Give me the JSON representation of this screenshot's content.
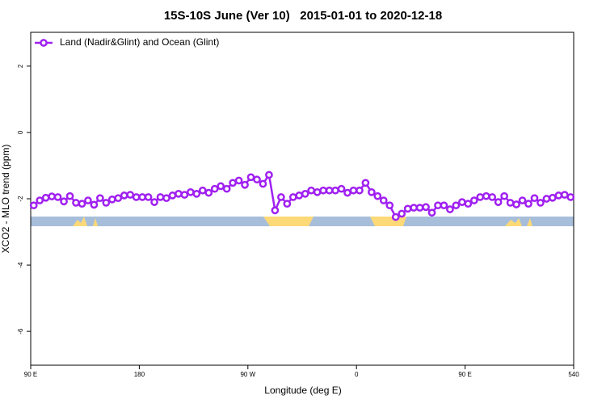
{
  "chart_data": {
    "type": "line",
    "title": "15S-10S June (Ver 10)   2015-01-01 to 2020-12-18",
    "x_label": "Longitude (deg E)",
    "y_label": "XCO2 - MLO trend (ppm)",
    "xlim": [
      90,
      540
    ],
    "ylim": [
      -7.02,
      3.02
    ],
    "xticks": [
      {
        "value": 90,
        "label": "90 E"
      },
      180,
      {
        "value": 270,
        "label": "90 W"
      },
      {
        "value": 360,
        "label": "0"
      },
      {
        "value": 450,
        "label": "90 E"
      },
      540
    ],
    "yticks": [
      2,
      0,
      -2,
      -4,
      -6
    ],
    "legend": "top-left",
    "x": [
      92.5,
      97.5,
      102.5,
      107.5,
      112.5,
      117.5,
      122.5,
      127.5,
      132.5,
      137.5,
      142.5,
      147.5,
      152.5,
      157.5,
      162.5,
      167.5,
      172.5,
      177.5,
      182.5,
      187.5,
      192.5,
      197.5,
      202.5,
      207.5,
      212.5,
      217.5,
      222.5,
      227.5,
      232.5,
      237.5,
      242.5,
      247.5,
      252.5,
      257.5,
      262.5,
      267.5,
      272.5,
      277.5,
      282.5,
      287.5,
      292.5,
      297.5,
      302.5,
      307.5,
      312.5,
      317.5,
      322.5,
      327.5,
      332.5,
      337.5,
      342.5,
      347.5,
      352.5,
      357.5,
      362.5,
      367.5,
      372.5,
      377.5,
      382.5,
      387.5,
      392.5,
      397.5,
      402.5,
      407.5,
      412.5,
      417.5,
      422.5,
      427.5,
      432.5,
      437.5,
      442.5,
      447.5,
      452.5,
      457.5,
      462.5,
      467.5,
      472.5,
      477.5,
      482.5,
      487.5,
      492.5,
      497.5,
      502.5,
      507.5,
      512.5,
      517.5,
      522.5,
      527.5,
      532.5,
      537.5
    ],
    "series": [
      {
        "name": "Land (Nadir&Glint) and Ocean (Glint)",
        "color": "#a020f0",
        "values": [
          -2.2,
          -2.05,
          -1.97,
          -1.93,
          -1.95,
          -2.08,
          -1.92,
          -2.12,
          -2.15,
          -2.05,
          -2.18,
          -1.98,
          -2.12,
          -2.02,
          -1.98,
          -1.9,
          -1.88,
          -1.95,
          -1.95,
          -1.95,
          -2.1,
          -1.95,
          -1.98,
          -1.9,
          -1.85,
          -1.88,
          -1.8,
          -1.85,
          -1.75,
          -1.82,
          -1.7,
          -1.62,
          -1.7,
          -1.52,
          -1.45,
          -1.58,
          -1.35,
          -1.42,
          -1.55,
          -1.28,
          -2.35,
          -1.95,
          -2.15,
          -1.95,
          -1.9,
          -1.85,
          -1.75,
          -1.8,
          -1.75,
          -1.75,
          -1.75,
          -1.7,
          -1.82,
          -1.75,
          -1.75,
          -1.52,
          -1.8,
          -1.92,
          -2.05,
          -2.2,
          -2.55,
          -2.45,
          -2.3,
          -2.27,
          -2.27,
          -2.25,
          -2.42,
          -2.2,
          -2.2,
          -2.32,
          -2.2,
          -2.1,
          -2.15,
          -2.05,
          -1.95,
          -1.92,
          -1.95,
          -2.1,
          -1.92,
          -2.12,
          -2.17,
          -2.05,
          -2.15,
          -1.98,
          -2.12,
          -2.0,
          -1.97,
          -1.9,
          -1.88,
          -1.95
        ]
      }
    ]
  }
}
